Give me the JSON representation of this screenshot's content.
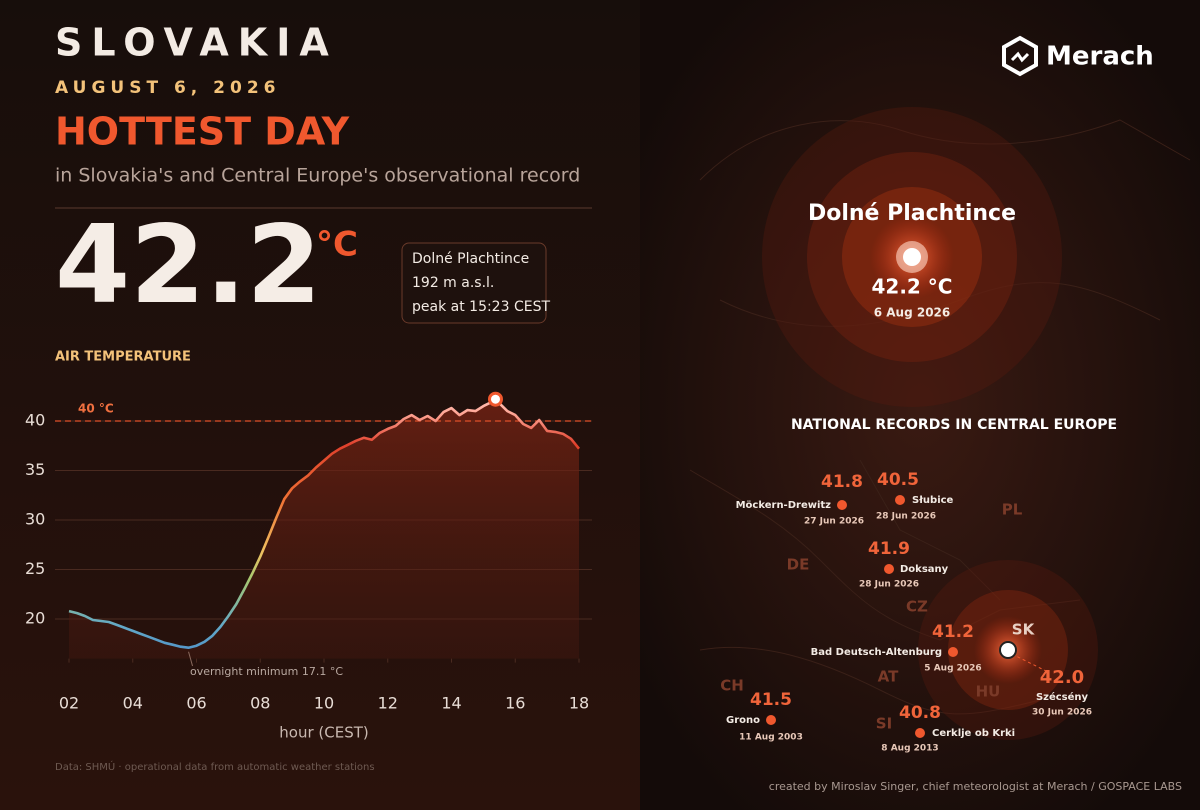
{
  "header": {
    "country": "SLOVAKIA",
    "date": "AUGUST 6, 2026",
    "headline": "HOTTEST DAY",
    "subtitle": "in Slovakia's and Central Europe's observational record"
  },
  "logo": "Merach",
  "record": {
    "value": "42.2",
    "unit": "°C",
    "station": "Dolné Plachtince",
    "altitude": "192 m a.s.l.",
    "peak_time": "peak at 15:23 CEST"
  },
  "chart_data": {
    "type": "line",
    "title": "AIR TEMPERATURE",
    "x_label": "hour  (CEST)",
    "xlim": [
      2,
      18
    ],
    "ylim": [
      16,
      43
    ],
    "xticks": [
      {
        "value": 2,
        "label": "02"
      },
      {
        "value": 4,
        "label": "04"
      },
      {
        "value": 6,
        "label": "06"
      },
      {
        "value": 8,
        "label": "08"
      },
      10,
      12,
      14,
      16,
      18
    ],
    "yticks": [
      20,
      25,
      30,
      35,
      40
    ],
    "grid": true,
    "reference": {
      "value": 40,
      "label": "40 °C"
    },
    "annotation": "overnight minimum 17.1 °C",
    "peak": {
      "x": 15.38,
      "value": 42.2
    },
    "x": [
      2,
      2.25,
      2.5,
      2.75,
      3,
      3.25,
      3.5,
      3.75,
      4,
      4.25,
      4.5,
      4.75,
      5,
      5.25,
      5.5,
      5.75,
      6,
      6.25,
      6.5,
      6.75,
      7,
      7.25,
      7.5,
      7.75,
      8,
      8.25,
      8.5,
      8.75,
      9,
      9.25,
      9.5,
      9.75,
      10,
      10.25,
      10.5,
      10.75,
      11,
      11.25,
      11.5,
      11.75,
      12,
      12.25,
      12.5,
      12.75,
      13,
      13.25,
      13.5,
      13.75,
      14,
      14.25,
      14.5,
      14.75,
      15,
      15.25,
      15.5,
      15.75,
      16,
      16.25,
      16.5,
      16.75,
      17,
      17.25,
      17.5,
      17.75,
      18
    ],
    "values": [
      20.8,
      20.6,
      20.3,
      19.9,
      19.8,
      19.7,
      19.4,
      19.1,
      18.8,
      18.5,
      18.2,
      17.9,
      17.6,
      17.4,
      17.2,
      17.1,
      17.3,
      17.7,
      18.3,
      19.2,
      20.3,
      21.5,
      23.0,
      24.6,
      26.3,
      28.2,
      30.2,
      32.1,
      33.2,
      33.9,
      34.5,
      35.3,
      36.0,
      36.7,
      37.2,
      37.6,
      38.0,
      38.3,
      38.1,
      38.8,
      39.2,
      39.5,
      40.2,
      40.6,
      40.1,
      40.5,
      40.0,
      40.9,
      41.3,
      40.6,
      41.1,
      41.0,
      41.5,
      41.9,
      41.8,
      41.0,
      40.6,
      39.7,
      39.3,
      40.1,
      39.0,
      38.9,
      38.7,
      38.2,
      37.2
    ]
  },
  "map": {
    "station": "Dolné Plachtince",
    "value": "42.2 °C",
    "date": "6 Aug 2026",
    "section_title": "NATIONAL RECORDS IN CENTRAL EUROPE",
    "records": [
      {
        "value": "41.8",
        "place": "Möckern-Drewitz",
        "date": "27 Jun 2026"
      },
      {
        "value": "40.5",
        "place": "Słubice",
        "date": "28 Jun 2026"
      },
      {
        "value": "41.9",
        "place": "Doksany",
        "date": "28 Jun 2026"
      },
      {
        "value": "41.2",
        "place": "Bad Deutsch-Altenburg",
        "date": "5 Aug 2026"
      },
      {
        "value": "42.0",
        "place": "Szécsény",
        "date": "30 Jun 2026"
      },
      {
        "value": "41.5",
        "place": "Grono",
        "date": "11 Aug 2003"
      },
      {
        "value": "40.8",
        "place": "Cerklje ob Krki",
        "date": "8 Aug 2013"
      }
    ],
    "countries": [
      "DE",
      "PL",
      "CZ",
      "SK",
      "AT",
      "HU",
      "CH",
      "SI"
    ]
  },
  "footer": {
    "source": "Data: SHMÚ  ·  operational data from automatic weather stations",
    "credit": "created by Miroslav Singer, chief meteorologist at Merach / GOSPACE LABS"
  }
}
